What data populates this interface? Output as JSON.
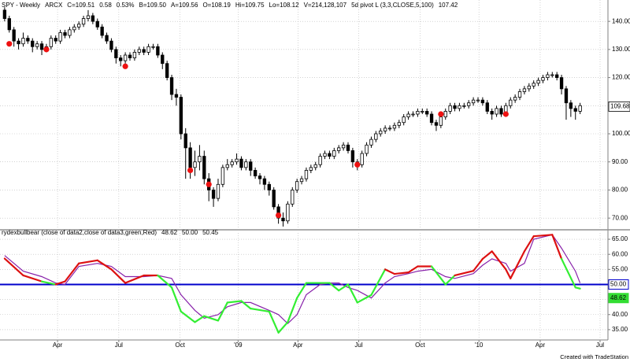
{
  "chart_data": [
    {
      "type": "candlestick",
      "header": [
        {
          "text": "SPY - Weekly",
          "color": "#000000"
        },
        {
          "text": "ARCX",
          "color": "#000000"
        },
        {
          "text": "C=109.51",
          "color": "#22bb22"
        },
        {
          "text": "0.58",
          "color": "#22bb22"
        },
        {
          "text": "0.53%",
          "color": "#22bb22"
        },
        {
          "text": "B=109.50",
          "color": "#000000"
        },
        {
          "text": "A=109.56",
          "color": "#000000"
        },
        {
          "text": "O=108.19",
          "color": "#22bb22"
        },
        {
          "text": "Hi=109.75",
          "color": "#000000"
        },
        {
          "text": "Lo=108.12",
          "color": "#000000"
        },
        {
          "text": "V=214,128,107",
          "color": "#000000"
        },
        {
          "text": "5d pivot L (3,3,CLOSE,5,100)",
          "color": "#000000"
        },
        {
          "text": "107.42",
          "color": "#dd1111"
        }
      ],
      "open": [
        144,
        141,
        137,
        133,
        132,
        134,
        133,
        131,
        132,
        130,
        131,
        134,
        133,
        136,
        135,
        137,
        138,
        139,
        141,
        142,
        140,
        138,
        135,
        133,
        130,
        127,
        126,
        128,
        127,
        129,
        130,
        129,
        131,
        131,
        128,
        125,
        120,
        114,
        113,
        100,
        95,
        88,
        90,
        92,
        84,
        80,
        77,
        82,
        88,
        89,
        90,
        91,
        88,
        90,
        87,
        85,
        84,
        82,
        80,
        74,
        70,
        69,
        75,
        80,
        83,
        84,
        87,
        88,
        89,
        92,
        93,
        92,
        94,
        95,
        96,
        94,
        90,
        89,
        93,
        96,
        98,
        100,
        101,
        102,
        102,
        103,
        104,
        106,
        107,
        107,
        108,
        108,
        107,
        104,
        103,
        106,
        108,
        110,
        109,
        110,
        110,
        111,
        112,
        112,
        111,
        108,
        107,
        109,
        107,
        110,
        112,
        113,
        115,
        116,
        117,
        118,
        119,
        120,
        121,
        121,
        120,
        116,
        111,
        109,
        108
      ],
      "high": [
        145,
        142,
        138,
        134,
        136,
        135,
        134,
        133,
        133,
        132,
        135,
        135,
        137,
        137,
        138,
        139,
        140,
        142,
        144,
        143,
        141,
        139,
        136,
        134,
        131,
        128,
        129,
        129,
        130,
        131,
        131,
        132,
        132,
        132,
        129,
        126,
        121,
        116,
        114,
        102,
        97,
        94,
        96,
        94,
        86,
        81,
        84,
        89,
        91,
        91,
        93,
        92,
        91,
        91,
        88,
        86,
        85,
        83,
        81,
        75,
        72,
        76,
        81,
        84,
        85,
        88,
        89,
        90,
        93,
        94,
        94,
        95,
        96,
        97,
        97,
        95,
        91,
        94,
        97,
        99,
        101,
        102,
        103,
        103,
        104,
        105,
        107,
        108,
        108,
        109,
        109,
        109,
        108,
        105,
        107,
        109,
        111,
        111,
        111,
        111,
        112,
        113,
        113,
        113,
        112,
        109,
        110,
        110,
        111,
        113,
        114,
        116,
        117,
        118,
        119,
        120,
        121,
        122,
        122,
        122,
        121,
        117,
        112,
        110,
        111
      ],
      "low": [
        140,
        136,
        131,
        130,
        131,
        132,
        129,
        130,
        128,
        129,
        130,
        132,
        132,
        134,
        134,
        136,
        137,
        138,
        140,
        139,
        137,
        134,
        132,
        129,
        125,
        124,
        125,
        126,
        126,
        128,
        128,
        128,
        130,
        127,
        123,
        119,
        112,
        110,
        98,
        84,
        84,
        85,
        87,
        82,
        76,
        74,
        76,
        81,
        87,
        88,
        89,
        87,
        87,
        85,
        84,
        82,
        80,
        78,
        73,
        68,
        67,
        68,
        74,
        79,
        82,
        83,
        86,
        87,
        88,
        91,
        91,
        91,
        93,
        94,
        93,
        88,
        87,
        88,
        92,
        95,
        97,
        99,
        100,
        101,
        101,
        102,
        103,
        105,
        106,
        106,
        107,
        106,
        103,
        101,
        102,
        105,
        107,
        108,
        108,
        109,
        109,
        110,
        111,
        110,
        107,
        105,
        106,
        106,
        106,
        109,
        111,
        112,
        114,
        115,
        116,
        117,
        118,
        119,
        120,
        119,
        114,
        105,
        106,
        105,
        107
      ],
      "close": [
        141,
        137,
        133,
        132,
        134,
        133,
        131,
        132,
        130,
        131,
        134,
        133,
        136,
        135,
        137,
        138,
        139,
        141,
        142,
        140,
        138,
        135,
        133,
        130,
        127,
        126,
        128,
        127,
        129,
        130,
        129,
        131,
        131,
        128,
        125,
        120,
        114,
        113,
        100,
        95,
        88,
        90,
        92,
        84,
        80,
        77,
        82,
        88,
        89,
        90,
        91,
        88,
        90,
        87,
        85,
        84,
        82,
        80,
        74,
        70,
        69,
        75,
        80,
        83,
        84,
        87,
        88,
        89,
        92,
        93,
        92,
        94,
        95,
        96,
        94,
        90,
        89,
        93,
        96,
        98,
        100,
        101,
        102,
        102,
        103,
        104,
        106,
        107,
        107,
        108,
        108,
        107,
        104,
        103,
        106,
        108,
        110,
        109,
        110,
        110,
        111,
        112,
        112,
        111,
        108,
        107,
        109,
        107,
        110,
        112,
        113,
        115,
        116,
        117,
        118,
        119,
        120,
        121,
        121,
        120,
        116,
        111,
        109,
        108,
        110
      ],
      "up_color": "#ffffff",
      "down_color": "#000000",
      "outline_color": "#000000",
      "pivots": {
        "color": "#ee1111",
        "x": [
          1,
          9,
          26,
          40,
          44,
          59,
          76,
          94,
          108
        ],
        "values": [
          132,
          130,
          124,
          87,
          82,
          71,
          89,
          107,
          107
        ]
      },
      "last_price": {
        "value": 109.68,
        "label": "109.68"
      },
      "xlim": [
        -1,
        130
      ],
      "ylim": [
        66.4,
        147.6
      ],
      "yticks": [
        {
          "value": 70,
          "label": "70.00"
        },
        {
          "value": 80,
          "label": "80.00"
        },
        {
          "value": 90,
          "label": "90.00"
        },
        {
          "value": 100,
          "label": "100.00"
        },
        {
          "value": 110,
          "label": "110.00"
        },
        {
          "value": 120,
          "label": "120.00"
        },
        {
          "value": 130,
          "label": "130.00"
        },
        {
          "value": 140,
          "label": "140.00"
        }
      ],
      "grid": true
    },
    {
      "type": "line",
      "title": "rydexbullbear (close of data2,close of data3,green,Red)",
      "readouts": [
        {
          "label": "48.62",
          "value": 48.62,
          "color": "#33dd33"
        },
        {
          "label": "50.00",
          "value": 50,
          "color": "#0000cc"
        },
        {
          "label": "50.45",
          "value": 50.45,
          "color": "#8822aa"
        }
      ],
      "level": {
        "value": 50,
        "color": "#0000cc"
      },
      "x": [
        0,
        4,
        8,
        11,
        13,
        16,
        20,
        23,
        26,
        30,
        33,
        36,
        38,
        41,
        43,
        46,
        48,
        51,
        53,
        57,
        59,
        61,
        63,
        65,
        68,
        70,
        72,
        74,
        76,
        79,
        82,
        84,
        87,
        89,
        92,
        95,
        97,
        101,
        103,
        105,
        108,
        109,
        112,
        114,
        118,
        120,
        123,
        124
      ],
      "series": [
        {
          "color": "#8822aa",
          "values": [
            59.6,
            54.4,
            52.6,
            50.5,
            50,
            56,
            57,
            56,
            52.6,
            52.6,
            53,
            52,
            46.6,
            41.4,
            38.8,
            40,
            42.6,
            44,
            44,
            41.4,
            40,
            37,
            40,
            46.6,
            50,
            50.5,
            50.5,
            49,
            48,
            45.5,
            50.5,
            52.6,
            53.6,
            54.4,
            55,
            52.6,
            52,
            53.6,
            56.4,
            58.5,
            57,
            54.4,
            57,
            65,
            66.5,
            62,
            54.4,
            50.45
          ]
        },
        {
          "colors": [
            "#dd1111",
            "#dd1111",
            "#dd1111",
            "#33ee33",
            "#dd1111",
            "#dd1111",
            "#dd1111",
            "#dd1111",
            "#dd1111",
            "#dd1111",
            "#dd1111",
            "#33ee33",
            "#33ee33",
            "#33ee33",
            "#33ee33",
            "#33ee33",
            "#33ee33",
            "#33ee33",
            "#33ee33",
            "#33ee33",
            "#33ee33",
            "#33ee33",
            "#33ee33",
            "#33ee33",
            "#33ee33",
            "#33ee33",
            "#33ee33",
            "#33ee33",
            "#33ee33",
            "#33ee33",
            "#33ee33",
            "#dd1111",
            "#dd1111",
            "#dd1111",
            "#dd1111",
            "#33ee33",
            "#33ee33",
            "#dd1111",
            "#dd1111",
            "#dd1111",
            "#dd1111",
            "#dd1111",
            "#dd1111",
            "#dd1111",
            "#dd1111",
            "#dd1111",
            "#33ee33",
            "#33ee33"
          ],
          "values": [
            58.6,
            53,
            51,
            50,
            51,
            57,
            58,
            55,
            50.5,
            53,
            53,
            49,
            41,
            37.5,
            39.5,
            38,
            44,
            44.5,
            42,
            41,
            34,
            37.5,
            45.5,
            50.5,
            50.5,
            50.5,
            48,
            50,
            44,
            46.5,
            55,
            53.5,
            54,
            56,
            56,
            50,
            53,
            54.5,
            58.5,
            61,
            55,
            52,
            61,
            66,
            66.5,
            58.5,
            49,
            48.62
          ]
        }
      ],
      "xlim": [
        -1,
        130
      ],
      "xticks": [
        {
          "value": 11.4,
          "label": "Apr"
        },
        {
          "value": 24.6,
          "label": "Jul"
        },
        {
          "value": 37.8,
          "label": "Oct"
        },
        {
          "value": 50.3,
          "label": "'09"
        },
        {
          "value": 63.2,
          "label": "Apr"
        },
        {
          "value": 76.3,
          "label": "Jul"
        },
        {
          "value": 89.5,
          "label": "Oct"
        },
        {
          "value": 102.2,
          "label": "'10"
        },
        {
          "value": 115.4,
          "label": "Apr"
        },
        {
          "value": 128.3,
          "label": "Jul"
        }
      ],
      "ylim": [
        32.1,
        67.1
      ],
      "yticks": [
        {
          "value": 35,
          "label": "35.00"
        },
        {
          "value": 40,
          "label": "40.00"
        },
        {
          "value": 45,
          "label": "45.00"
        },
        {
          "value": 50,
          "label": "50.00"
        },
        {
          "value": 55,
          "label": "55.00"
        },
        {
          "value": 60,
          "label": "60.00"
        },
        {
          "value": 65,
          "label": "65.00"
        }
      ],
      "grid": true
    }
  ],
  "footer": "Created with TradeStation"
}
